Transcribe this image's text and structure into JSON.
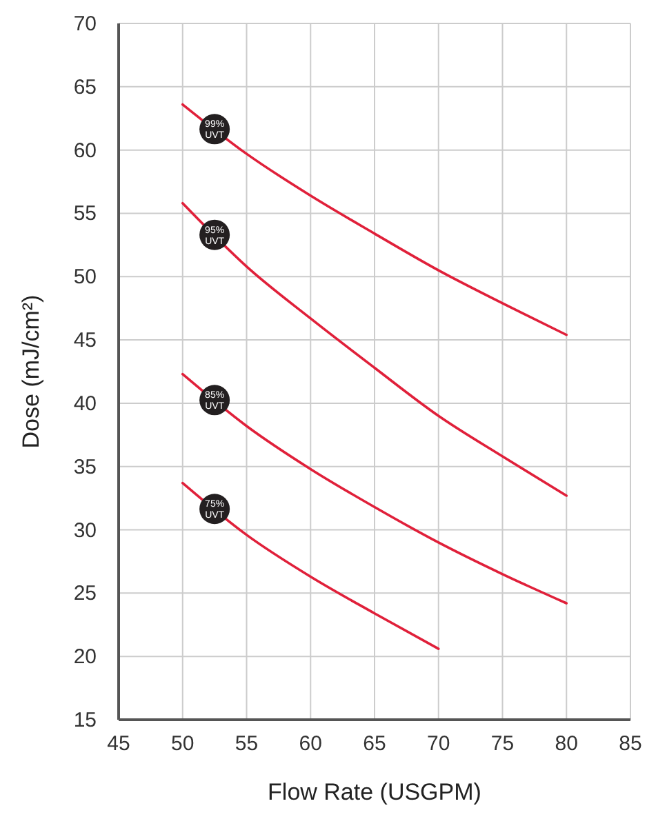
{
  "chart_data": {
    "type": "line",
    "xlabel": "Flow Rate (USGPM)",
    "ylabel": "Dose (mJ/cm²)",
    "xlim": [
      45,
      85
    ],
    "xticks": [
      45,
      50,
      55,
      60,
      65,
      70,
      75,
      80,
      85
    ],
    "ylim": [
      15,
      70
    ],
    "yticks": [
      15,
      20,
      25,
      30,
      35,
      40,
      45,
      50,
      55,
      60,
      65,
      70
    ],
    "grid": true,
    "marker": "none",
    "line_style": "solid",
    "series": [
      {
        "name": "99% UVT",
        "color": "#e0203a",
        "x": [
          50,
          55,
          60,
          65,
          70,
          75,
          80
        ],
        "values": [
          63.6,
          59.7,
          56.4,
          53.4,
          50.5,
          47.9,
          45.4
        ]
      },
      {
        "name": "95% UVT",
        "color": "#e0203a",
        "x": [
          50,
          55,
          60,
          65,
          70,
          75,
          80
        ],
        "values": [
          55.8,
          50.8,
          46.7,
          42.8,
          39,
          35.8,
          32.7
        ]
      },
      {
        "name": "85% UVT",
        "color": "#e0203a",
        "x": [
          50,
          55,
          60,
          65,
          70,
          75,
          80
        ],
        "values": [
          42.3,
          38.2,
          34.8,
          31.8,
          29,
          26.5,
          24.2
        ]
      },
      {
        "name": "75% UVT",
        "color": "#e0203a",
        "x": [
          50,
          55,
          60,
          65,
          70
        ],
        "values": [
          33.7,
          29.6,
          26.3,
          23.4,
          20.6
        ]
      }
    ]
  }
}
